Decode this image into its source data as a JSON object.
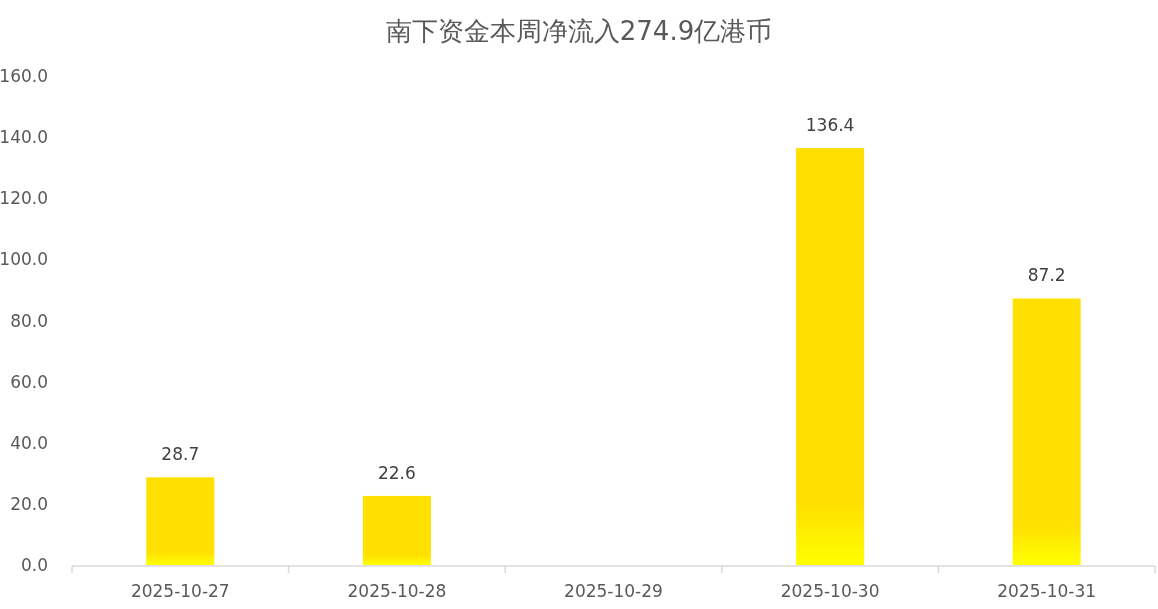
{
  "chart_data": {
    "type": "bar",
    "title": "南下资金本周净流入274.9亿港币",
    "categories": [
      "2025-10-27",
      "2025-10-28",
      "2025-10-29",
      "2025-10-30",
      "2025-10-31"
    ],
    "values": [
      28.7,
      22.6,
      null,
      136.4,
      87.2
    ],
    "color": "#ffe000",
    "ylim": [
      0,
      160
    ],
    "yticks": [
      {
        "value": 0,
        "label": "0.0"
      },
      {
        "value": 20,
        "label": "20.0"
      },
      {
        "value": 40,
        "label": "40.0"
      },
      {
        "value": 60,
        "label": "60.0"
      },
      {
        "value": 80,
        "label": "80.0"
      },
      {
        "value": 100,
        "label": "100.0"
      },
      {
        "value": 120,
        "label": "120.0"
      },
      {
        "value": 140,
        "label": "140.0"
      },
      {
        "value": 160,
        "label": "160.0"
      }
    ],
    "data_labels": true
  }
}
